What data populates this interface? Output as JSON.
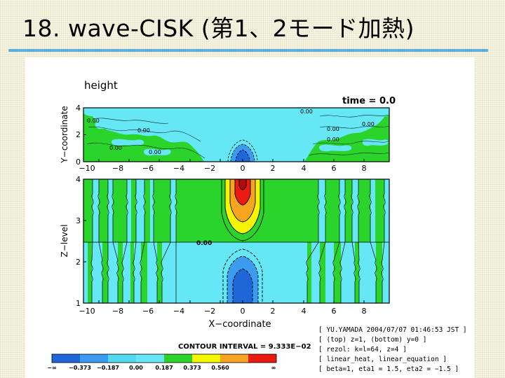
{
  "slide": {
    "title": "18. wave-CISK (第1、2モード加熱)"
  },
  "figure": {
    "variable": "height",
    "time_label": "time = 0.0",
    "top_panel": {
      "ylabel": "Y−coordinate",
      "y_ticks": [
        "0",
        "2",
        "4"
      ],
      "x_ticks": [
        "−10",
        "−8",
        "−6",
        "−4",
        "−2",
        "0",
        "2",
        "4",
        "6",
        "8"
      ],
      "contour_labels": [
        "0.00",
        "0.00",
        "0.00",
        "0.00",
        "0.00",
        "0.00",
        "0.00",
        "0.00"
      ]
    },
    "bottom_panel": {
      "ylabel": "Z−level",
      "xlabel": "X−coordinate",
      "y_ticks": [
        "1",
        "2",
        "3",
        "4"
      ],
      "x_ticks": [
        "−10",
        "−8",
        "−6",
        "−4",
        "−2",
        "0",
        "2",
        "4",
        "6",
        "8"
      ],
      "center_label": "0.00",
      "column_label": "0.00"
    },
    "contour_interval": "CONTOUR INTERVAL = 9.333E−02",
    "colorbar": {
      "labels": [
        "−∞",
        "−0.373",
        "−0.187",
        "0.00",
        "0.187",
        "0.373",
        "0.560",
        "∞"
      ],
      "colors": [
        "#1f66d9",
        "#3d9bef",
        "#52d8ef",
        "#66e7f6",
        "#2ad42a",
        "#f6f600",
        "#f5a51e",
        "#ea1c12"
      ]
    },
    "info_lines": [
      "[ YU.YAMADA 2004/07/07 01:46:53 JST ]",
      "[ (top) z=1, (bottom) y=0 ]",
      "[ rezol: k=l=64, z=4 ]",
      "[ linear_heat, linear_equation ]",
      "[ beta=1, eta1 = 1.5, eta2 = −1.5 ]"
    ]
  },
  "colors": {
    "rule": "#5aaee0",
    "cyan": "#66e7f6",
    "green": "#2ad42a",
    "yellow": "#f6f600",
    "orange": "#f5a51e",
    "red": "#ea1c12",
    "blue_light": "#3d9bef",
    "blue_dark": "#1f66d9"
  }
}
